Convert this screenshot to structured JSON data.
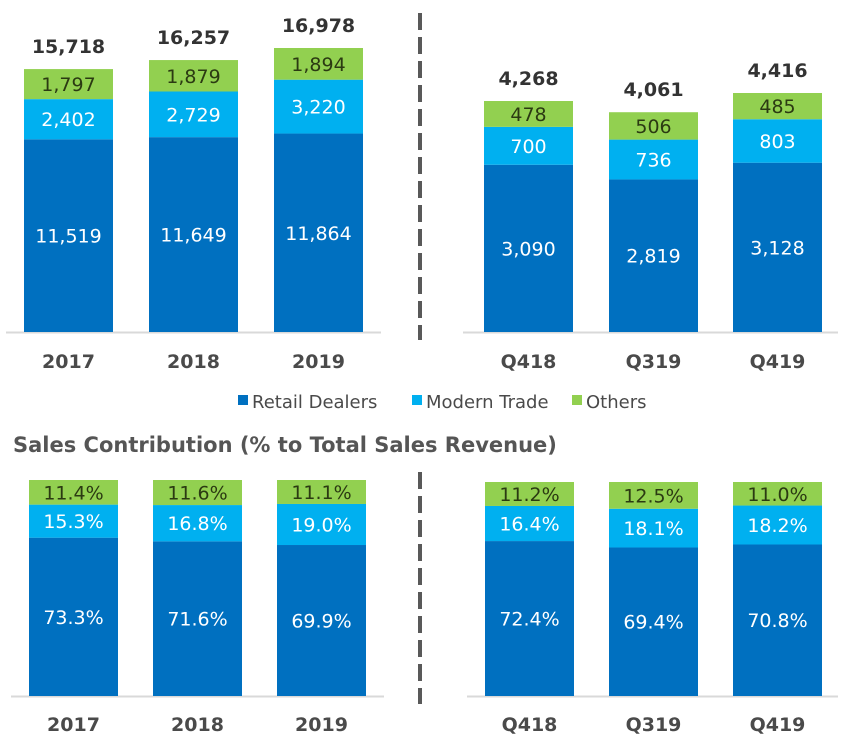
{
  "colors": {
    "retail_dealers": "#0070C0",
    "modern_trade": "#00B0F0",
    "others": "#92D050",
    "axis": "#D9D9D9",
    "separator": "#595959"
  },
  "legend": [
    {
      "name": "Retail Dealers",
      "color_key": "retail_dealers"
    },
    {
      "name": "Modern Trade",
      "color_key": "modern_trade"
    },
    {
      "name": "Others",
      "color_key": "others"
    }
  ],
  "section_title": "Sales Contribution (% to Total Sales Revenue)",
  "chart_data": [
    {
      "type": "bar",
      "stacked": true,
      "title": "",
      "xlabel": "",
      "ylabel": "",
      "categories": [
        "2017",
        "2018",
        "2019"
      ],
      "series": [
        {
          "name": "Retail Dealers",
          "values": [
            11519,
            11649,
            11864
          ],
          "labels": [
            "11,519",
            "11,649",
            "11,864"
          ]
        },
        {
          "name": "Modern Trade",
          "values": [
            2402,
            2729,
            3220
          ],
          "labels": [
            "2,402",
            "2,729",
            "3,220"
          ]
        },
        {
          "name": "Others",
          "values": [
            1797,
            1879,
            1894
          ],
          "labels": [
            "1,797",
            "1,879",
            "1,894"
          ]
        }
      ],
      "totals": [
        15718,
        16257,
        16978
      ],
      "total_labels": [
        "15,718",
        "16,257",
        "16,978"
      ],
      "grid": false,
      "legend": "bottom-center"
    },
    {
      "type": "bar",
      "stacked": true,
      "title": "",
      "xlabel": "",
      "ylabel": "",
      "categories": [
        "Q418",
        "Q319",
        "Q419"
      ],
      "series": [
        {
          "name": "Retail Dealers",
          "values": [
            3090,
            2819,
            3128
          ],
          "labels": [
            "3,090",
            "2,819",
            "3,128"
          ]
        },
        {
          "name": "Modern Trade",
          "values": [
            700,
            736,
            803
          ],
          "labels": [
            "700",
            "736",
            "803"
          ]
        },
        {
          "name": "Others",
          "values": [
            478,
            506,
            485
          ],
          "labels": [
            "478",
            "506",
            "485"
          ]
        }
      ],
      "totals": [
        4268,
        4061,
        4416
      ],
      "total_labels": [
        "4,268",
        "4,061",
        "4,416"
      ],
      "grid": false,
      "legend": "bottom-center"
    },
    {
      "type": "bar",
      "stacked": true,
      "title": "Sales Contribution (% to Total Sales Revenue)",
      "xlabel": "",
      "ylabel": "",
      "categories": [
        "2017",
        "2018",
        "2019"
      ],
      "series": [
        {
          "name": "Retail Dealers",
          "values": [
            73.3,
            71.6,
            69.9
          ],
          "labels": [
            "73.3%",
            "71.6%",
            "69.9%"
          ]
        },
        {
          "name": "Modern Trade",
          "values": [
            15.3,
            16.8,
            19.0
          ],
          "labels": [
            "15.3%",
            "16.8%",
            "19.0%"
          ]
        },
        {
          "name": "Others",
          "values": [
            11.4,
            11.6,
            11.1
          ],
          "labels": [
            "11.4%",
            "11.6%",
            "11.1%"
          ]
        }
      ],
      "ylim": [
        0,
        100
      ],
      "grid": false
    },
    {
      "type": "bar",
      "stacked": true,
      "title": "Sales Contribution (% to Total Sales Revenue)",
      "xlabel": "",
      "ylabel": "",
      "categories": [
        "Q418",
        "Q319",
        "Q419"
      ],
      "series": [
        {
          "name": "Retail Dealers",
          "values": [
            72.4,
            69.4,
            70.8
          ],
          "labels": [
            "72.4%",
            "69.4%",
            "70.8%"
          ]
        },
        {
          "name": "Modern Trade",
          "values": [
            16.4,
            18.1,
            18.2
          ],
          "labels": [
            "16.4%",
            "18.1%",
            "18.2%"
          ]
        },
        {
          "name": "Others",
          "values": [
            11.2,
            12.5,
            11.0
          ],
          "labels": [
            "11.2%",
            "12.5%",
            "11.0%"
          ]
        }
      ],
      "ylim": [
        0,
        100
      ],
      "grid": false
    }
  ]
}
